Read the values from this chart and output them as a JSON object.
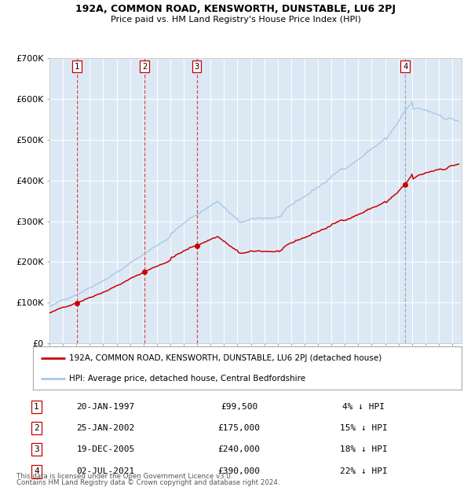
{
  "title1": "192A, COMMON ROAD, KENSWORTH, DUNSTABLE, LU6 2PJ",
  "title2": "Price paid vs. HM Land Registry's House Price Index (HPI)",
  "bg_color": "#dce9f5",
  "grid_color": "#ffffff",
  "fig_bg_color": "#ffffff",
  "red_line_color": "#cc0000",
  "blue_line_color": "#a8c8e8",
  "legend_label_red": "192A, COMMON ROAD, KENSWORTH, DUNSTABLE, LU6 2PJ (detached house)",
  "legend_label_blue": "HPI: Average price, detached house, Central Bedfordshire",
  "footer": "Contains HM Land Registry data © Crown copyright and database right 2024.\nThis data is licensed under the Open Government Licence v3.0.",
  "transactions": [
    {
      "num": 1,
      "date": "20-JAN-1997",
      "price": 99500,
      "year": 1997.05,
      "pct": "4% ↓ HPI"
    },
    {
      "num": 2,
      "date": "25-JAN-2002",
      "price": 175000,
      "year": 2002.07,
      "pct": "15% ↓ HPI"
    },
    {
      "num": 3,
      "date": "19-DEC-2005",
      "price": 240000,
      "year": 2005.97,
      "pct": "18% ↓ HPI"
    },
    {
      "num": 4,
      "date": "02-JUL-2021",
      "price": 390000,
      "year": 2021.5,
      "pct": "22% ↓ HPI"
    }
  ],
  "ylim": [
    0,
    700000
  ],
  "yticks": [
    0,
    100000,
    200000,
    300000,
    400000,
    500000,
    600000,
    700000
  ],
  "ytick_labels": [
    "£0",
    "£100K",
    "£200K",
    "£300K",
    "£400K",
    "£500K",
    "£600K",
    "£700K"
  ],
  "xlim_start": 1995.0,
  "xlim_end": 2025.7
}
